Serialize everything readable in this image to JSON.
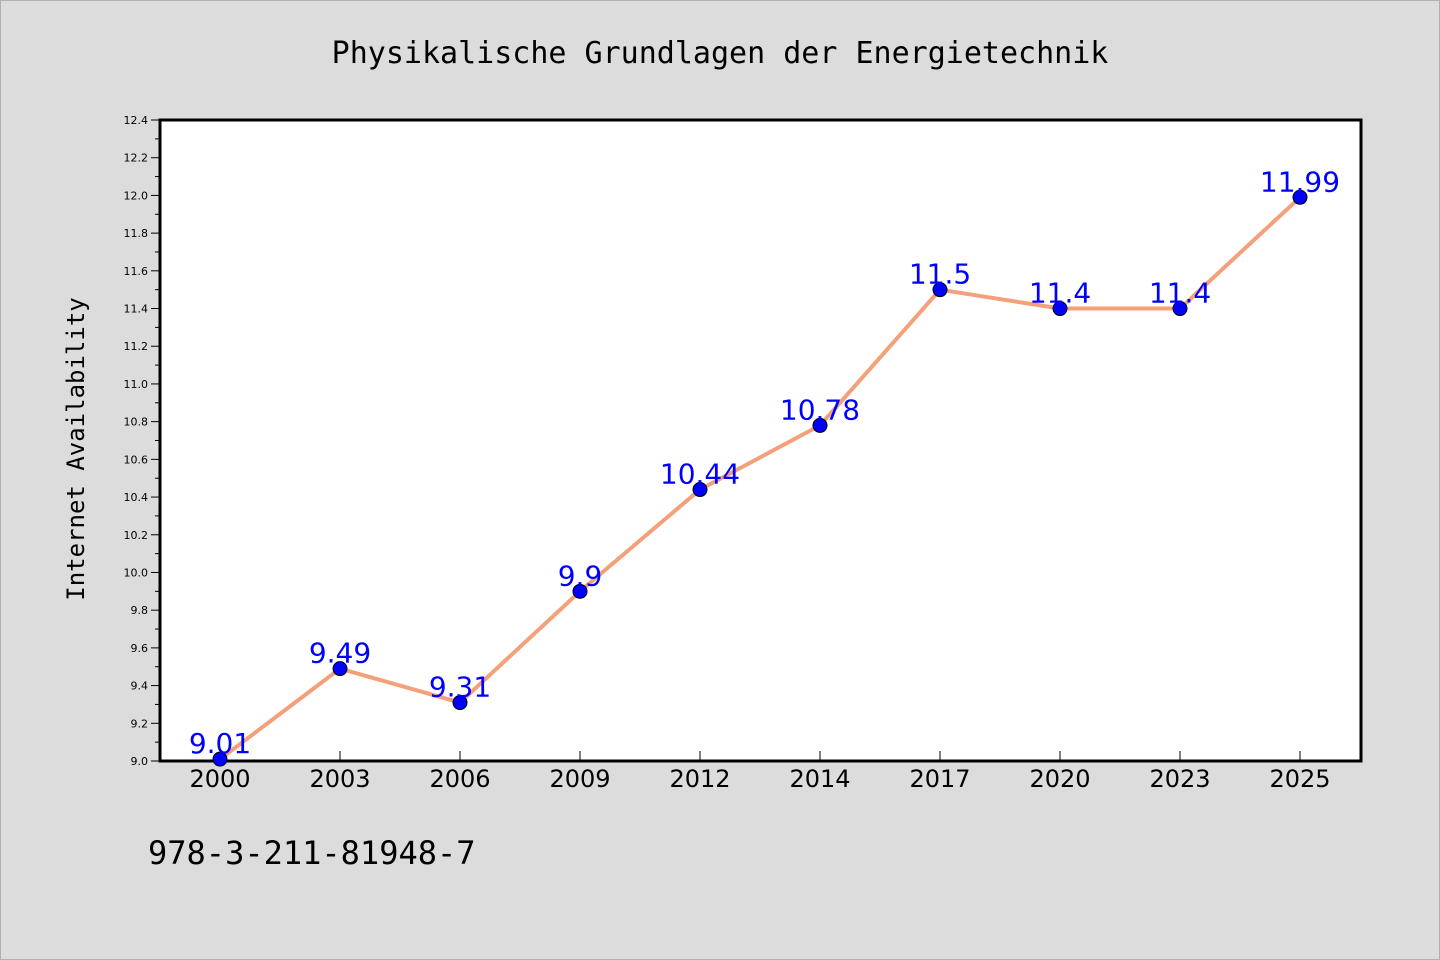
{
  "chart_data": {
    "type": "line",
    "title": "Physikalische Grundlagen der Energietechnik",
    "xlabel": "",
    "ylabel": "Internet Availability",
    "categories": [
      "2000",
      "2003",
      "2006",
      "2009",
      "2012",
      "2014",
      "2017",
      "2020",
      "2023",
      "2025"
    ],
    "series": [
      {
        "values": [
          9.01,
          9.49,
          9.31,
          9.9,
          10.44,
          10.78,
          11.5,
          11.4,
          11.4,
          11.99
        ],
        "data_labels": [
          "9.01",
          "9.49",
          "9.31",
          "9.9",
          "10.44",
          "10.78",
          "11.5",
          "11.4",
          "11.4",
          "11.99"
        ]
      }
    ],
    "ylim": [
      9.0,
      12.4
    ],
    "yticks": [
      "9.0",
      "9.2",
      "9.4",
      "9.6",
      "9.8",
      "10.0",
      "10.2",
      "10.4",
      "10.6",
      "10.8",
      "11.0",
      "11.2",
      "11.4",
      "11.6",
      "11.8",
      "12.0",
      "12.2",
      "12.4"
    ],
    "grid": false,
    "colors": {
      "line": "#f4a07a",
      "marker": "#0000ff",
      "marker_edge": "#000000",
      "data_label": "#0000ff",
      "background": "#dcdcdc",
      "plot_area": "#ffffff"
    }
  },
  "footer": {
    "isbn": "978-3-211-81948-7"
  }
}
